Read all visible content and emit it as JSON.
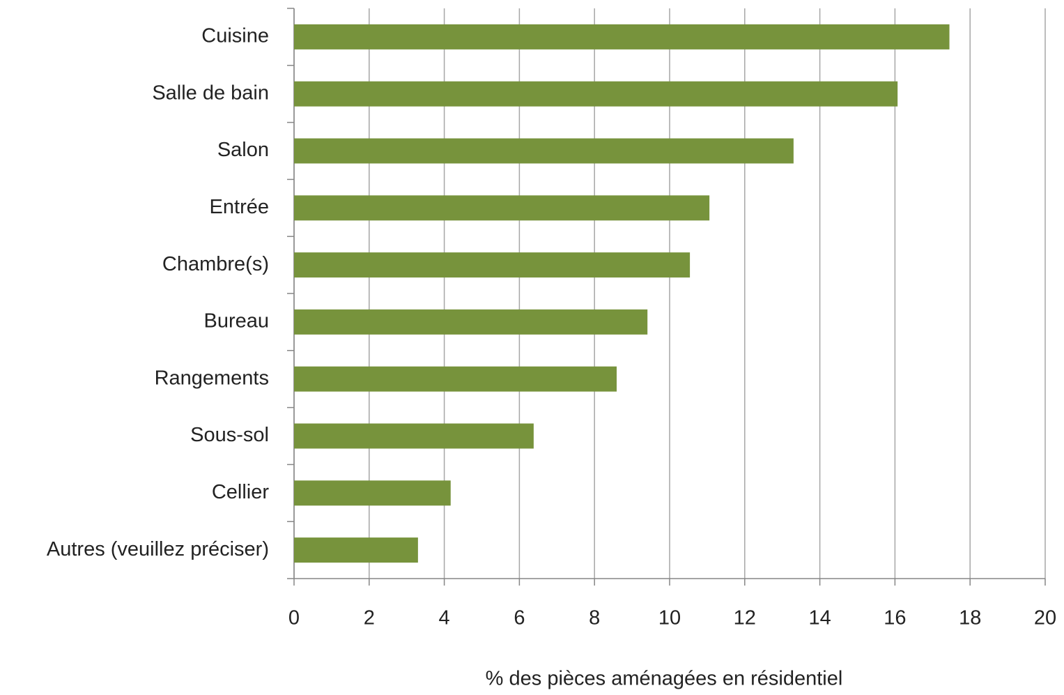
{
  "chart_data": {
    "type": "bar",
    "orientation": "horizontal",
    "x_label": "% des pièces aménagées en résidentiel",
    "categories": [
      "Cuisine",
      "Salle de bain",
      "Salon",
      "Entrée",
      "Chambre(s)",
      "Bureau",
      "Rangements",
      "Sous-sol",
      "Cellier",
      "Autres (veuillez préciser)"
    ],
    "values": [
      17.45,
      16.07,
      13.3,
      11.06,
      10.54,
      9.41,
      8.59,
      6.38,
      4.17,
      3.3
    ],
    "color": "#77933c",
    "xlim": [
      0,
      20
    ],
    "xticks": [
      0,
      2,
      4,
      6,
      8,
      10,
      12,
      14,
      16,
      18,
      20
    ],
    "grid": true
  }
}
